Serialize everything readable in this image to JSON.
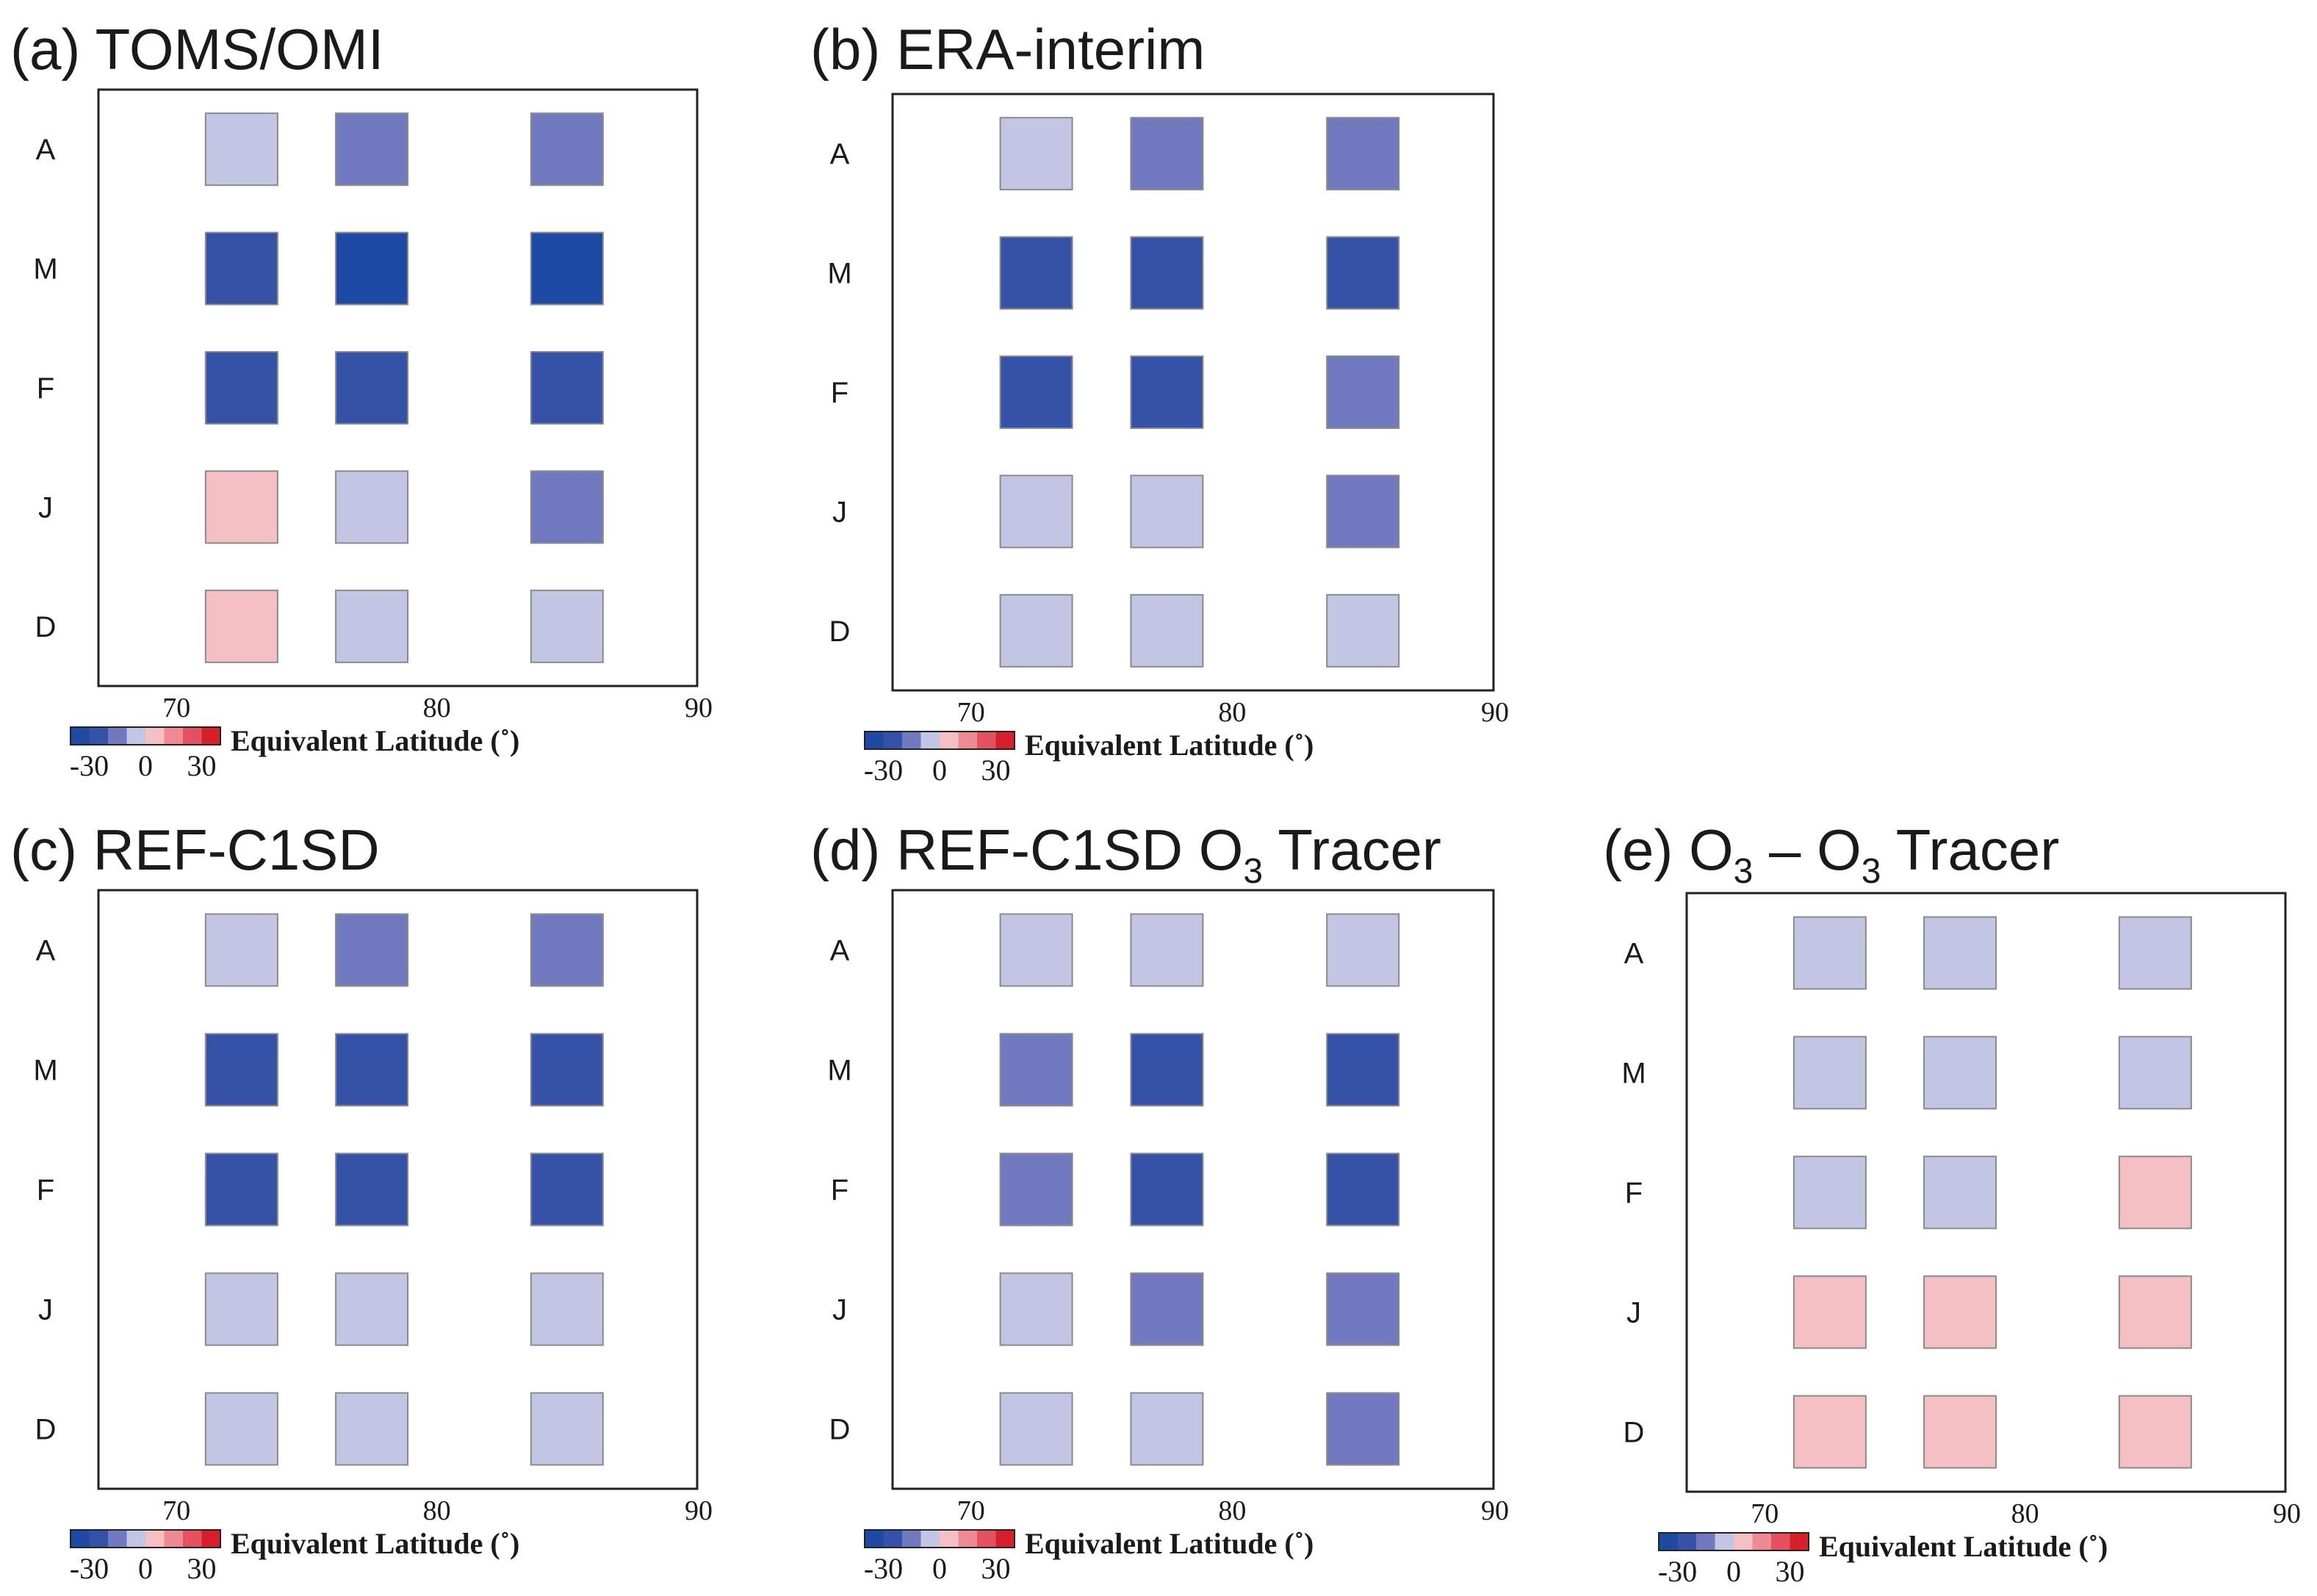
{
  "colors": {
    "neg3": "#1f4aa3",
    "neg2": "#3552a8",
    "neg1": "#7179bf",
    "neg0": "#c3c5e4",
    "pos0": "#f5c0c4",
    "pos1": "#ee8a94",
    "pos2": "#e5525f",
    "pos3": "#d81f2c"
  },
  "chart_data": [
    {
      "type": "heatmap",
      "label": "(a)",
      "title": "TOMS/OMI",
      "title_sub": [],
      "months": [
        "A",
        "M",
        "F",
        "J",
        "D"
      ],
      "x_values": [
        72.5,
        77.5,
        85
      ],
      "x_ticks": [
        "70",
        "80",
        "90"
      ],
      "xlim": [
        67,
        90
      ],
      "xlabel": "Equivalent Latitude (˚)",
      "color_scale": {
        "min": -30,
        "max": 30,
        "ticks": [
          "-30",
          "0",
          "30"
        ]
      },
      "cells": [
        [
          "neg0",
          "neg1",
          "neg1"
        ],
        [
          "neg2",
          "neg3",
          "neg3"
        ],
        [
          "neg2",
          "neg2",
          "neg2"
        ],
        [
          "pos0",
          "neg0",
          "neg1"
        ],
        [
          "pos0",
          "neg0",
          "neg0"
        ]
      ]
    },
    {
      "type": "heatmap",
      "label": "(b)",
      "title": "ERA-interim",
      "title_sub": [],
      "months": [
        "A",
        "M",
        "F",
        "J",
        "D"
      ],
      "x_values": [
        72.5,
        77.5,
        85
      ],
      "x_ticks": [
        "70",
        "80",
        "90"
      ],
      "xlim": [
        67,
        90
      ],
      "xlabel": "Equivalent Latitude (˚)",
      "color_scale": {
        "min": -30,
        "max": 30,
        "ticks": [
          "-30",
          "0",
          "30"
        ]
      },
      "cells": [
        [
          "neg0",
          "neg1",
          "neg1"
        ],
        [
          "neg2",
          "neg2",
          "neg2"
        ],
        [
          "neg2",
          "neg2",
          "neg1"
        ],
        [
          "neg0",
          "neg0",
          "neg1"
        ],
        [
          "neg0",
          "neg0",
          "neg0"
        ]
      ]
    },
    {
      "type": "heatmap",
      "label": "(c)",
      "title": "REF-C1SD",
      "title_sub": [],
      "months": [
        "A",
        "M",
        "F",
        "J",
        "D"
      ],
      "x_values": [
        72.5,
        77.5,
        85
      ],
      "x_ticks": [
        "70",
        "80",
        "90"
      ],
      "xlim": [
        67,
        90
      ],
      "xlabel": "Equivalent Latitude (˚)",
      "color_scale": {
        "min": -30,
        "max": 30,
        "ticks": [
          "-30",
          "0",
          "30"
        ]
      },
      "cells": [
        [
          "neg0",
          "neg1",
          "neg1"
        ],
        [
          "neg2",
          "neg2",
          "neg2"
        ],
        [
          "neg2",
          "neg2",
          "neg2"
        ],
        [
          "neg0",
          "neg0",
          "neg0"
        ],
        [
          "neg0",
          "neg0",
          "neg0"
        ]
      ]
    },
    {
      "type": "heatmap",
      "label": "(d)",
      "title": "REF-C1SD O",
      "title_sub": [
        "3",
        " Tracer"
      ],
      "months": [
        "A",
        "M",
        "F",
        "J",
        "D"
      ],
      "x_values": [
        72.5,
        77.5,
        85
      ],
      "x_ticks": [
        "70",
        "80",
        "90"
      ],
      "xlim": [
        67,
        90
      ],
      "xlabel": "Equivalent Latitude (˚)",
      "color_scale": {
        "min": -30,
        "max": 30,
        "ticks": [
          "-30",
          "0",
          "30"
        ]
      },
      "cells": [
        [
          "neg0",
          "neg0",
          "neg0"
        ],
        [
          "neg1",
          "neg2",
          "neg2"
        ],
        [
          "neg1",
          "neg2",
          "neg2"
        ],
        [
          "neg0",
          "neg1",
          "neg1"
        ],
        [
          "neg0",
          "neg0",
          "neg1"
        ]
      ]
    },
    {
      "type": "heatmap",
      "label": "(e)",
      "title": "O",
      "title_sub": [
        "3",
        " – O",
        "3",
        " Tracer"
      ],
      "months": [
        "A",
        "M",
        "F",
        "J",
        "D"
      ],
      "x_values": [
        72.5,
        77.5,
        85
      ],
      "x_ticks": [
        "70",
        "80",
        "90"
      ],
      "xlim": [
        67,
        90
      ],
      "xlabel": "Equivalent Latitude (˚)",
      "color_scale": {
        "min": -30,
        "max": 30,
        "ticks": [
          "-30",
          "0",
          "30"
        ]
      },
      "cells": [
        [
          "neg0",
          "neg0",
          "neg0"
        ],
        [
          "neg0",
          "neg0",
          "neg0"
        ],
        [
          "neg0",
          "neg0",
          "pos0"
        ],
        [
          "pos0",
          "pos0",
          "pos0"
        ],
        [
          "pos0",
          "pos0",
          "pos0"
        ]
      ]
    }
  ]
}
